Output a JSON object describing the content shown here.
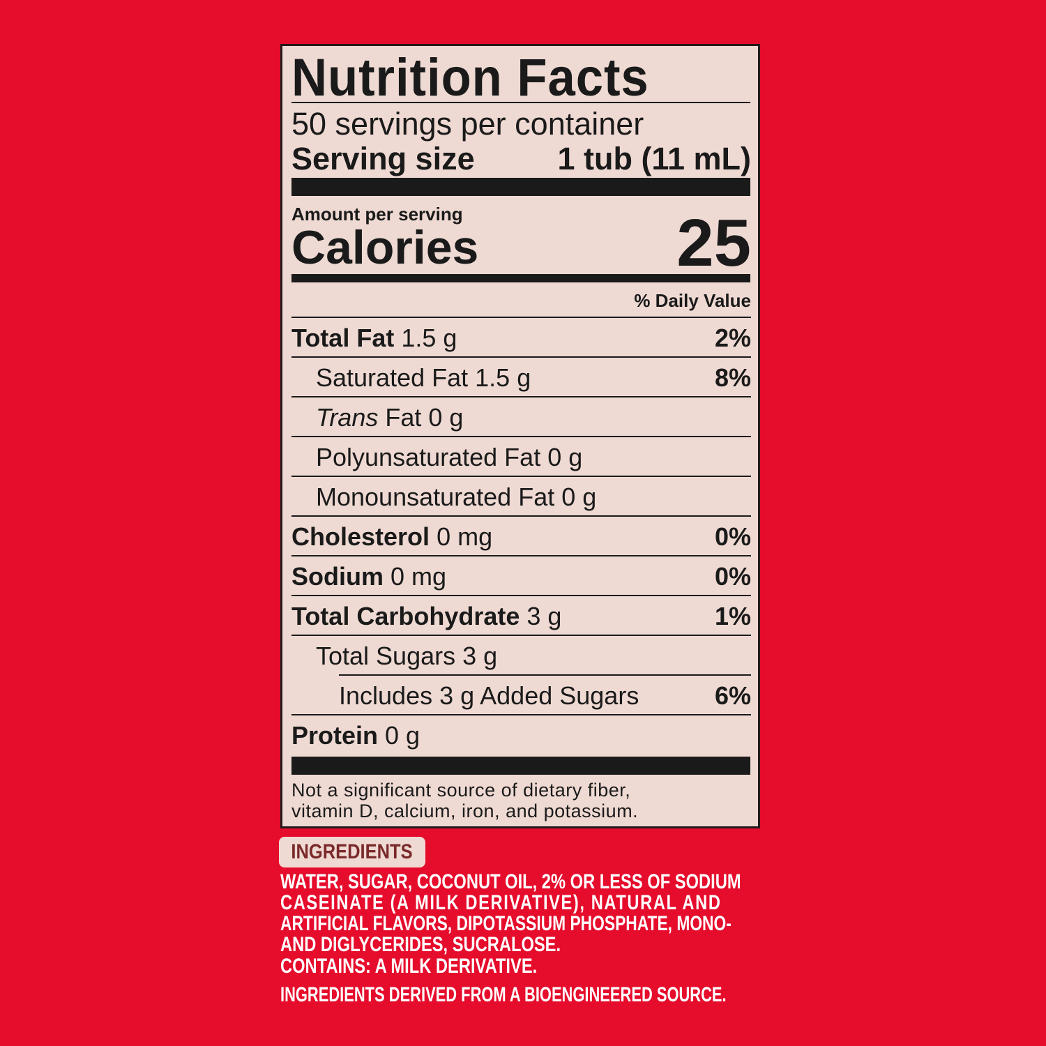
{
  "colors": {
    "background": "#e60c2c",
    "panel": "#efdad3",
    "text": "#1a1a1a",
    "ingredients_badge_text": "#7a2a2a"
  },
  "label": {
    "title": "Nutrition Facts",
    "servings_per_container": "50 servings per container",
    "serving_size_label": "Serving size",
    "serving_size_value": "1 tub (11 mL)",
    "amount_per_serving": "Amount per serving",
    "calories_label": "Calories",
    "calories_value": "25",
    "daily_value_header": "% Daily Value",
    "rows": [
      {
        "name": "Total Fat",
        "amount": "1.5 g",
        "dv": "2%"
      },
      {
        "name": "Saturated Fat",
        "amount": "1.5 g",
        "dv": "8%"
      },
      {
        "name": "Trans",
        "name_suffix": "Fat",
        "amount": "0 g",
        "dv": ""
      },
      {
        "name": "Polyunsaturated Fat",
        "amount": "0 g",
        "dv": ""
      },
      {
        "name": "Monounsaturated Fat",
        "amount": "0 g",
        "dv": ""
      },
      {
        "name": "Cholesterol",
        "amount": "0 mg",
        "dv": "0%"
      },
      {
        "name": "Sodium",
        "amount": "0 mg",
        "dv": "0%"
      },
      {
        "name": "Total Carbohydrate",
        "amount": "3 g",
        "dv": "1%"
      },
      {
        "name": "Total Sugars",
        "amount": "3 g",
        "dv": ""
      },
      {
        "name": "Includes 3 g Added Sugars",
        "amount": "",
        "dv": "6%"
      },
      {
        "name": "Protein",
        "amount": "0 g",
        "dv": ""
      }
    ],
    "footnote_line1": "Not a significant source of dietary fiber,",
    "footnote_line2": "vitamin D, calcium, iron, and potassium."
  },
  "ingredients": {
    "heading": "INGREDIENTS",
    "lines": [
      "WATER, SUGAR, COCONUT OIL, 2% OR LESS OF SODIUM",
      "CASEINATE (A MILK DERIVATIVE), NATURAL AND",
      "ARTIFICIAL FLAVORS, DIPOTASSIUM PHOSPHATE, MONO-",
      "AND DIGLYCERIDES, SUCRALOSE."
    ],
    "contains": "CONTAINS: A MILK DERIVATIVE.",
    "bioengineered": "INGREDIENTS DERIVED FROM A BIOENGINEERED SOURCE."
  }
}
